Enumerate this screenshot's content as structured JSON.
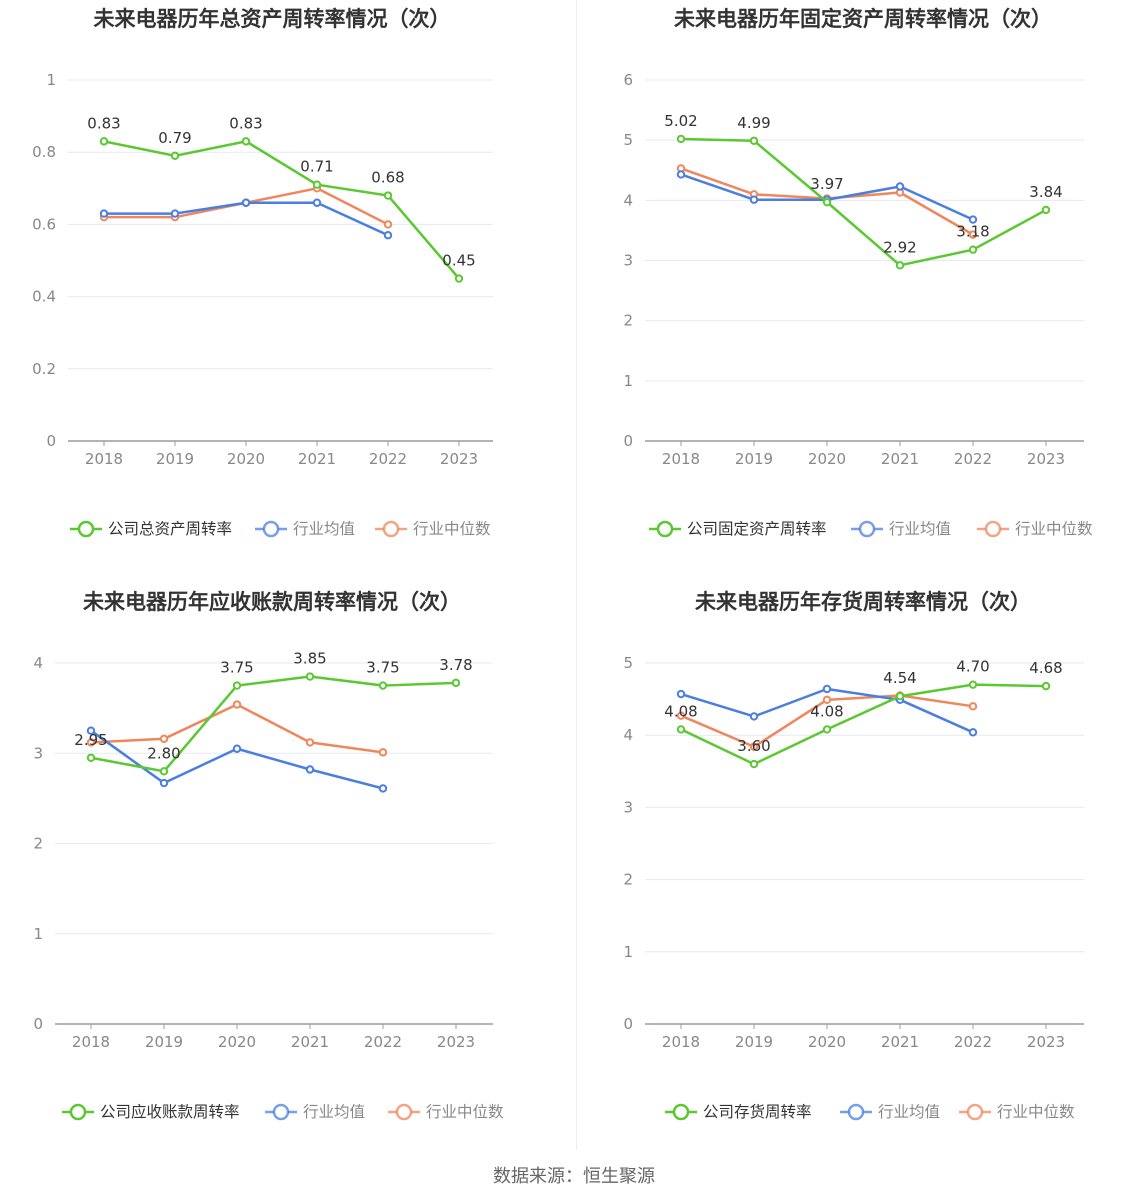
{
  "source": "数据来源：恒生聚源",
  "colors": {
    "company": "#5ac831",
    "industry_avg": "#4a7ee0",
    "industry_median": "#f0865c"
  },
  "chart_data": [
    {
      "type": "line",
      "title": "未来电器历年总资产周转率情况（次）",
      "x": [
        "2018",
        "2019",
        "2020",
        "2021",
        "2022",
        "2023"
      ],
      "ylim": [
        0,
        1
      ],
      "yticks": [
        "0",
        "0.2",
        "0.4",
        "0.6",
        "0.8",
        "1"
      ],
      "ytick_values": [
        0,
        0.2,
        0.4,
        0.6,
        0.8,
        1
      ],
      "legend": "bottom",
      "grid": true,
      "series": [
        {
          "name": "公司总资产周转率",
          "values": [
            0.83,
            0.79,
            0.83,
            0.71,
            0.68,
            0.45
          ],
          "labels": [
            "0.83",
            "0.79",
            "0.83",
            "0.71",
            "0.68",
            "0.45"
          ]
        },
        {
          "name": "行业均值",
          "values": [
            0.63,
            0.63,
            0.66,
            0.66,
            0.57,
            null
          ]
        },
        {
          "name": "行业中位数",
          "values": [
            0.62,
            0.62,
            0.66,
            0.7,
            0.6,
            null
          ]
        }
      ]
    },
    {
      "type": "line",
      "title": "未来电器历年固定资产周转率情况（次）",
      "x": [
        "2018",
        "2019",
        "2020",
        "2021",
        "2022",
        "2023"
      ],
      "ylim": [
        0,
        6
      ],
      "yticks": [
        "0",
        "1",
        "2",
        "3",
        "4",
        "5",
        "6"
      ],
      "ytick_values": [
        0,
        1,
        2,
        3,
        4,
        5,
        6
      ],
      "legend": "bottom",
      "grid": true,
      "series": [
        {
          "name": "公司固定资产周转率",
          "values": [
            5.02,
            4.99,
            3.97,
            2.92,
            3.18,
            3.84
          ],
          "labels": [
            "5.02",
            "4.99",
            "3.97",
            "2.92",
            "3.18",
            "3.84"
          ]
        },
        {
          "name": "行业均值",
          "values": [
            4.43,
            4.01,
            4.01,
            4.23,
            3.68,
            null
          ]
        },
        {
          "name": "行业中位数",
          "values": [
            4.53,
            4.1,
            4.03,
            4.13,
            3.43,
            null
          ]
        }
      ]
    },
    {
      "type": "line",
      "title": "未来电器历年应收账款周转率情况（次）",
      "x": [
        "2018",
        "2019",
        "2020",
        "2021",
        "2022",
        "2023"
      ],
      "ylim": [
        0,
        4
      ],
      "yticks": [
        "0",
        "1",
        "2",
        "3",
        "4"
      ],
      "ytick_values": [
        0,
        1,
        2,
        3,
        4
      ],
      "legend": "bottom",
      "grid": true,
      "series": [
        {
          "name": "公司应收账款周转率",
          "values": [
            2.95,
            2.8,
            3.75,
            3.85,
            3.75,
            3.78
          ],
          "labels": [
            "2.95",
            "2.80",
            "3.75",
            "3.85",
            "3.75",
            "3.78"
          ]
        },
        {
          "name": "行业均值",
          "values": [
            3.25,
            2.67,
            3.05,
            2.82,
            2.61,
            null
          ]
        },
        {
          "name": "行业中位数",
          "values": [
            3.12,
            3.16,
            3.54,
            3.12,
            3.01,
            null
          ]
        }
      ]
    },
    {
      "type": "line",
      "title": "未来电器历年存货周转率情况（次）",
      "x": [
        "2018",
        "2019",
        "2020",
        "2021",
        "2022",
        "2023"
      ],
      "ylim": [
        0,
        5
      ],
      "yticks": [
        "0",
        "1",
        "2",
        "3",
        "4",
        "5"
      ],
      "ytick_values": [
        0,
        1,
        2,
        3,
        4,
        5
      ],
      "legend": "bottom",
      "grid": true,
      "series": [
        {
          "name": "公司存货周转率",
          "values": [
            4.08,
            3.6,
            4.08,
            4.54,
            4.7,
            4.68
          ],
          "labels": [
            "4.08",
            "3.60",
            "4.08",
            "4.54",
            "4.70",
            "4.68"
          ]
        },
        {
          "name": "行业均值",
          "values": [
            4.57,
            4.26,
            4.64,
            4.49,
            4.04,
            null
          ]
        },
        {
          "name": "行业中位数",
          "values": [
            4.27,
            3.84,
            4.49,
            4.55,
            4.4,
            null
          ]
        }
      ]
    }
  ]
}
